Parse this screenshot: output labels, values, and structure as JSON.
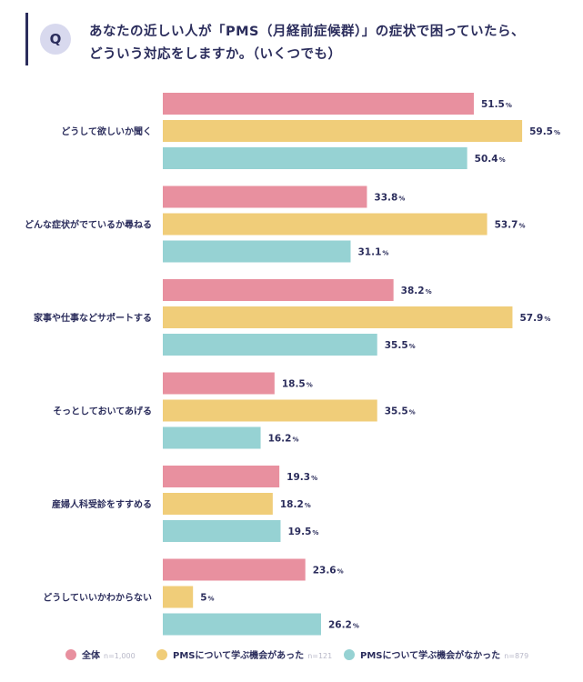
{
  "question": {
    "badge": "Q",
    "line1": "あなたの近しい人が「PMS（月経前症候群）」の症状で困っていたら、",
    "line2": "どういう対応をしますか。（いくつでも）"
  },
  "legend": [
    {
      "label": "全体",
      "n": "n=1,000",
      "color": "#e8909f"
    },
    {
      "label": "PMSについて学ぶ機会があった",
      "n": "n=121",
      "color": "#f0cd79"
    },
    {
      "label": "PMSについて学ぶ機会がなかった",
      "n": "n=879",
      "color": "#96d2d3"
    }
  ],
  "chart_data": {
    "type": "bar",
    "orientation": "horizontal",
    "unit": "%",
    "xlim": [
      0,
      60
    ],
    "grid": false,
    "legend_position": "bottom",
    "categories": [
      "どうして欲しいか聞く",
      "どんな症状がでているか尋ねる",
      "家事や仕事などサポートする",
      "そっとしておいてあげる",
      "産婦人科受診をすすめる",
      "どうしていいかわからない"
    ],
    "series": [
      {
        "name": "全体",
        "color": "#e8909f",
        "values": [
          51.5,
          33.8,
          38.2,
          18.5,
          19.3,
          23.6
        ]
      },
      {
        "name": "PMSについて学ぶ機会があった",
        "color": "#f0cd79",
        "values": [
          59.5,
          53.7,
          57.9,
          35.5,
          18.2,
          5
        ]
      },
      {
        "name": "PMSについて学ぶ機会がなかった",
        "color": "#96d2d3",
        "values": [
          50.4,
          31.1,
          35.5,
          16.2,
          19.5,
          26.2
        ]
      }
    ]
  }
}
